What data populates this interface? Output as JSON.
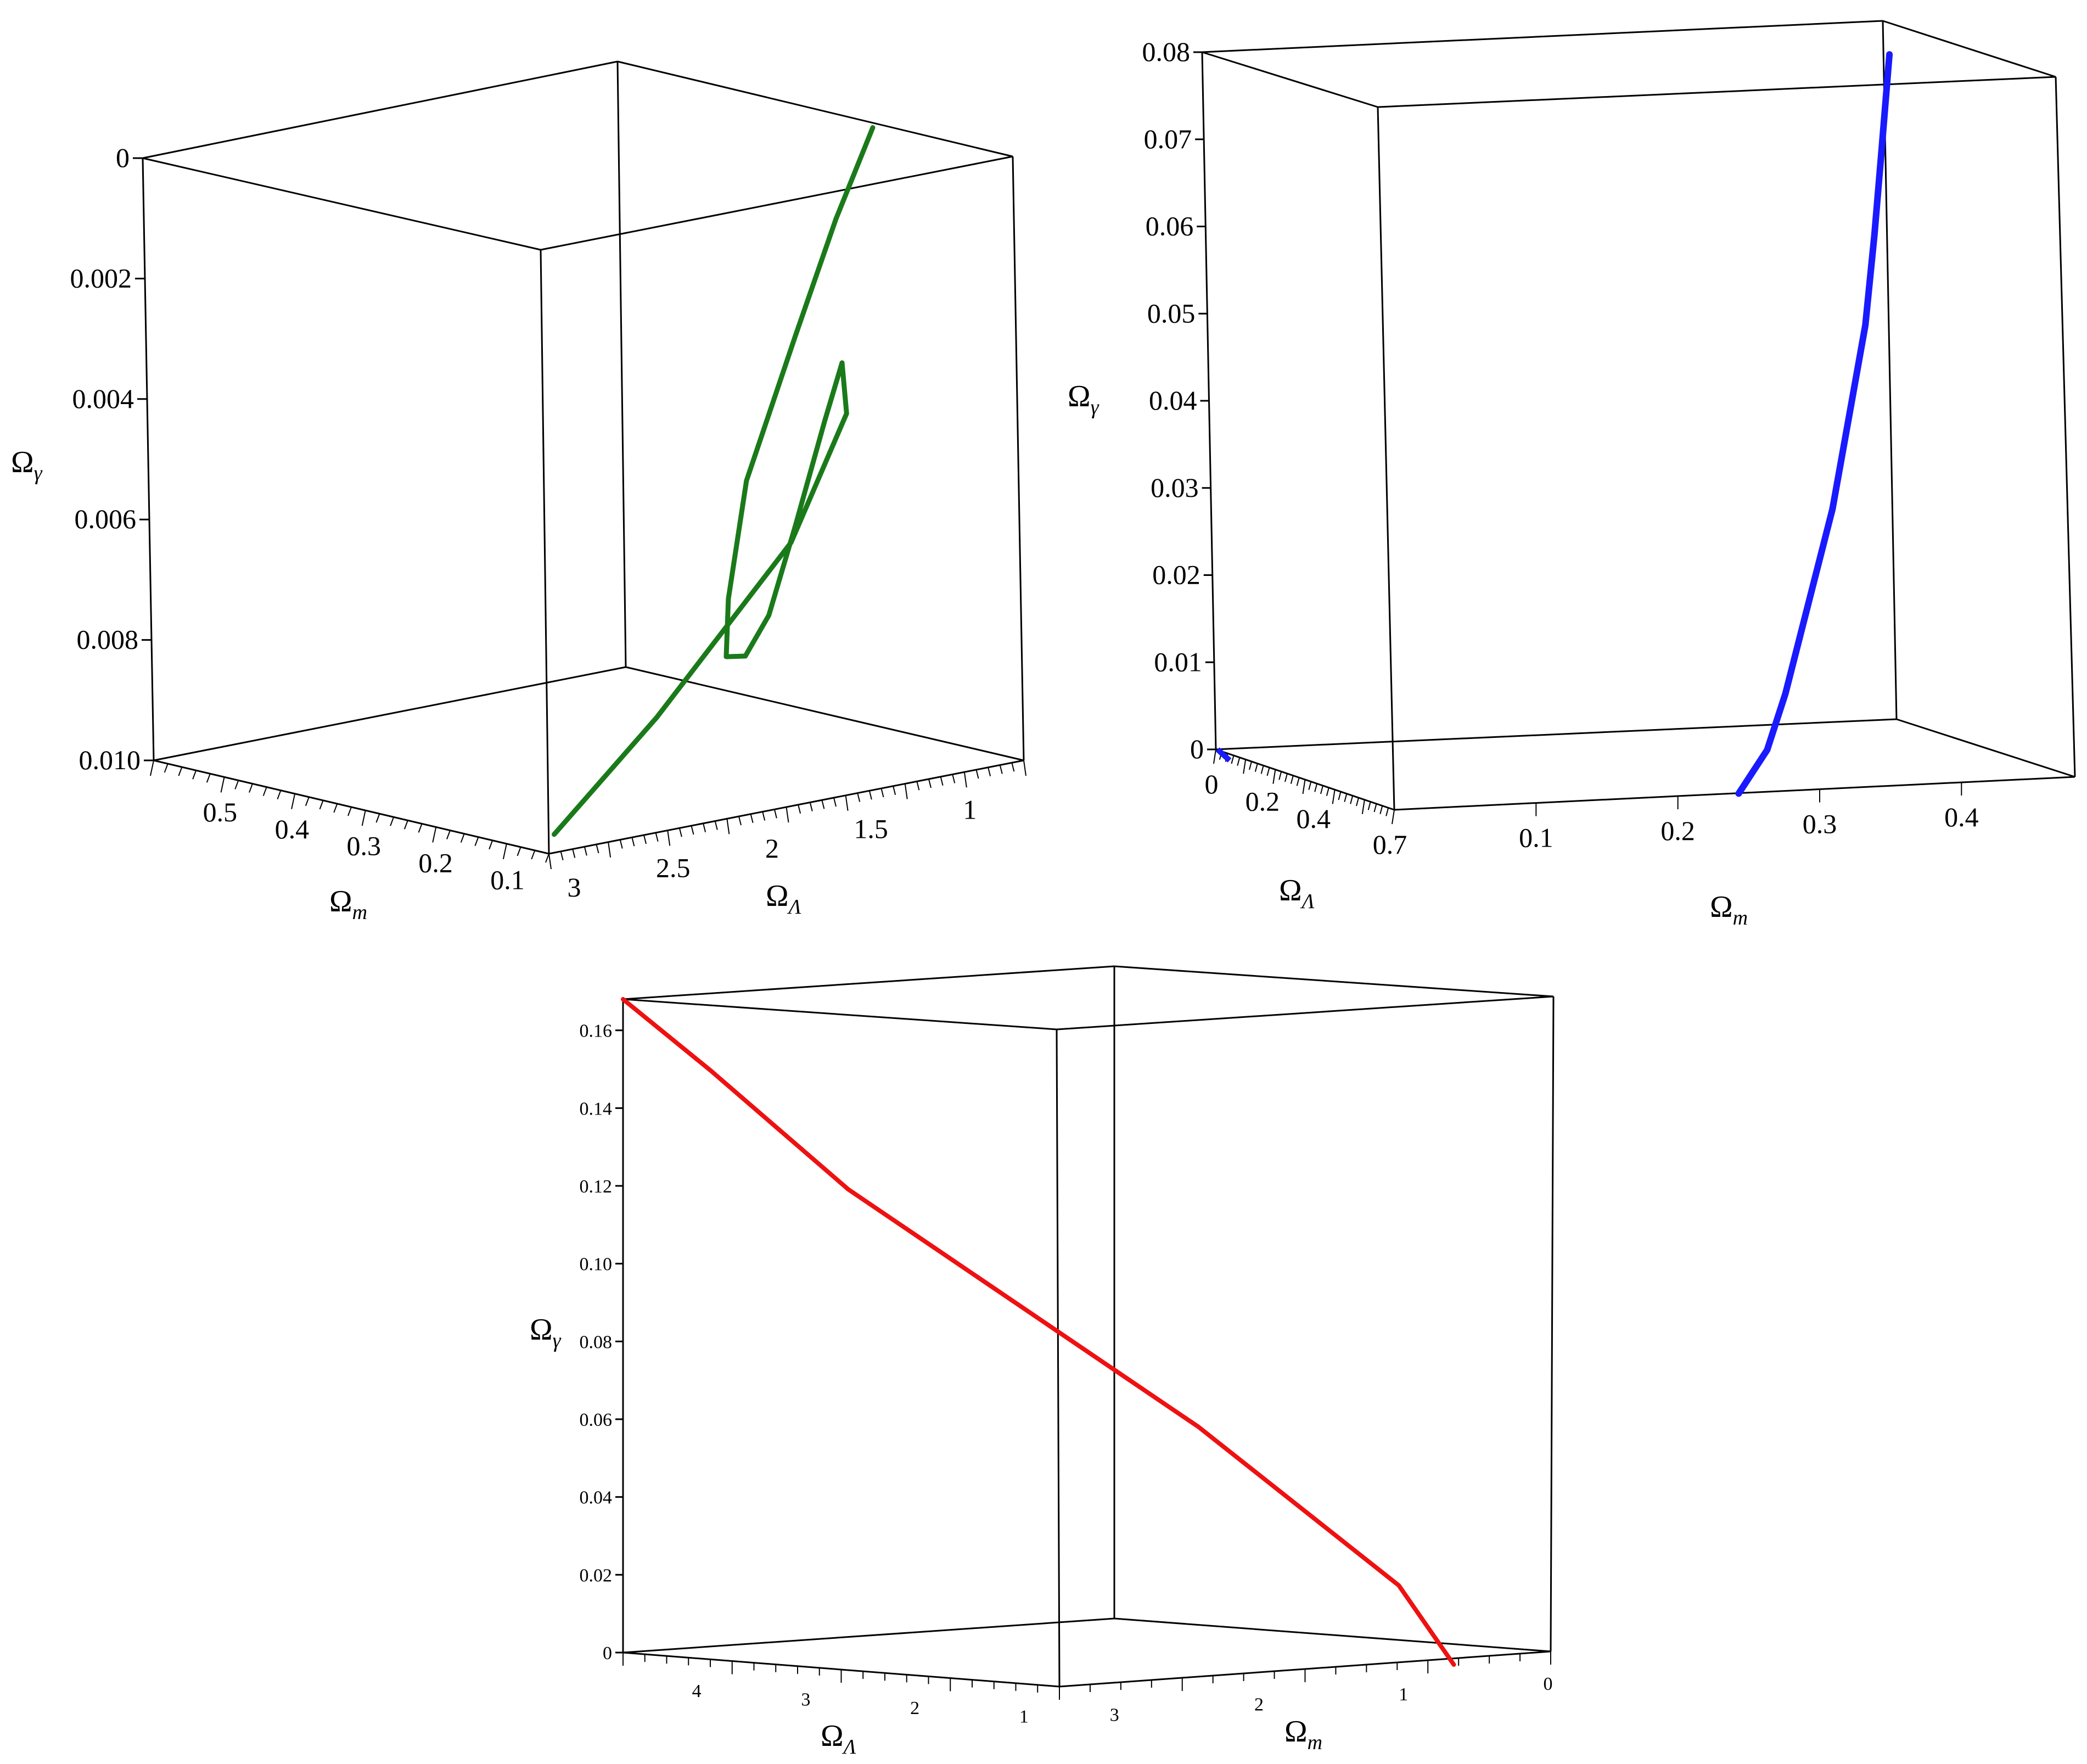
{
  "chart_data": [
    {
      "id": "top-left",
      "type": "line",
      "projection": "3d",
      "box": true,
      "color": "#1a7a1a",
      "axes": {
        "gamma": {
          "title_main": "Ω",
          "title_sub": "γ",
          "ticks": [
            "0",
            "0.002",
            "0.004",
            "0.006",
            "0.008",
            "0.010"
          ],
          "range": [
            0,
            0.01
          ],
          "inverted": true
        },
        "m": {
          "title_main": "Ω",
          "title_sub": "m",
          "ticks": [
            "0.5",
            "0.4",
            "0.3",
            "0.2",
            "0.1"
          ],
          "range": [
            0.05,
            0.6
          ]
        },
        "lambda": {
          "title_main": "Ω",
          "title_sub": "Λ",
          "ticks": [
            "3",
            "2.5",
            "2",
            "1.5",
            "1"
          ],
          "range": [
            0.7,
            3.1
          ]
        }
      },
      "series": [
        {
          "points": [
            {
              "m": 0.12,
              "lambda": 1.15,
              "gamma": -0.0006
            },
            {
              "m": 0.16,
              "lambda": 1.2,
              "gamma": 0.001
            },
            {
              "m": 0.2,
              "lambda": 1.27,
              "gamma": 0.003
            },
            {
              "m": 0.25,
              "lambda": 1.35,
              "gamma": 0.0055
            },
            {
              "m": 0.27,
              "lambda": 1.38,
              "gamma": 0.0075
            },
            {
              "m": 0.28,
              "lambda": 1.36,
              "gamma": 0.0085
            },
            {
              "m": 0.27,
              "lambda": 1.3,
              "gamma": 0.0085
            },
            {
              "m": 0.25,
              "lambda": 1.25,
              "gamma": 0.0078
            },
            {
              "m": 0.23,
              "lambda": 1.18,
              "gamma": 0.0063
            },
            {
              "m": 0.2,
              "lambda": 1.13,
              "gamma": 0.0045
            },
            {
              "m": 0.18,
              "lambda": 1.11,
              "gamma": 0.0035
            },
            {
              "m": 0.15,
              "lambda": 1.2,
              "gamma": 0.0042
            },
            {
              "m": 0.12,
              "lambda": 1.6,
              "gamma": 0.006
            },
            {
              "m": 0.09,
              "lambda": 2.4,
              "gamma": 0.0083
            },
            {
              "m": 0.07,
              "lambda": 3.0,
              "gamma": 0.0098
            }
          ]
        }
      ]
    },
    {
      "id": "top-right",
      "type": "line",
      "projection": "3d",
      "box": true,
      "color": "#1a1aff",
      "axes": {
        "gamma": {
          "title_main": "Ω",
          "title_sub": "γ",
          "ticks": [
            "0",
            "0.01",
            "0.02",
            "0.03",
            "0.04",
            "0.05",
            "0.06",
            "0.07",
            "0.08"
          ],
          "range": [
            0,
            0.08
          ]
        },
        "lambda": {
          "title_main": "Ω",
          "title_sub": "Λ",
          "ticks": [
            "0",
            "0.2",
            "0.4",
            "0.7"
          ],
          "range": [
            0,
            0.7
          ]
        },
        "m": {
          "title_main": "Ω",
          "title_sub": "m",
          "ticks": [
            "0.1",
            "0.2",
            "0.3",
            "0.4"
          ],
          "range": [
            0,
            0.48
          ]
        }
      },
      "series": [
        {
          "points": [
            {
              "m": 0.25,
              "lambda": 0.66,
              "gamma": -0.0005
            },
            {
              "m": 0.276,
              "lambda": 0.63,
              "gamma": 0.004
            },
            {
              "m": 0.295,
              "lambda": 0.6,
              "gamma": 0.01
            },
            {
              "m": 0.32,
              "lambda": 0.56,
              "gamma": 0.02
            },
            {
              "m": 0.345,
              "lambda": 0.52,
              "gamma": 0.03
            },
            {
              "m": 0.365,
              "lambda": 0.48,
              "gamma": 0.04
            },
            {
              "m": 0.385,
              "lambda": 0.44,
              "gamma": 0.05
            },
            {
              "m": 0.398,
              "lambda": 0.41,
              "gamma": 0.06
            },
            {
              "m": 0.41,
              "lambda": 0.38,
              "gamma": 0.07
            },
            {
              "m": 0.42,
              "lambda": 0.36,
              "gamma": 0.08
            }
          ]
        }
      ]
    },
    {
      "id": "bottom",
      "type": "line",
      "projection": "3d",
      "box": true,
      "color": "#ee1111",
      "axes": {
        "gamma": {
          "title_main": "Ω",
          "title_sub": "γ",
          "ticks": [
            "0",
            "0.02",
            "0.04",
            "0.06",
            "0.08",
            "0.10",
            "0.12",
            "0.14",
            "0.16"
          ],
          "range": [
            0,
            0.168
          ]
        },
        "lambda": {
          "title_main": "Ω",
          "title_sub": "Λ",
          "ticks": [
            "4",
            "3",
            "2",
            "1"
          ],
          "range": [
            0.7,
            4.7
          ]
        },
        "m": {
          "title_main": "Ω",
          "title_sub": "m",
          "ticks": [
            "3",
            "2",
            "1",
            "0"
          ],
          "range": [
            0,
            3.4
          ]
        }
      },
      "series": [
        {
          "points": [
            {
              "m": 0.0,
              "lambda": 4.7,
              "gamma": 0.168
            },
            {
              "m": 0.35,
              "lambda": 4.2,
              "gamma": 0.15
            },
            {
              "m": 0.9,
              "lambda": 3.4,
              "gamma": 0.12
            },
            {
              "m": 1.6,
              "lambda": 2.6,
              "gamma": 0.09
            },
            {
              "m": 2.3,
              "lambda": 1.8,
              "gamma": 0.06
            },
            {
              "m": 2.9,
              "lambda": 1.15,
              "gamma": 0.03
            },
            {
              "m": 3.1,
              "lambda": 0.95,
              "gamma": 0.02
            },
            {
              "m": 3.32,
              "lambda": 0.7,
              "gamma": 0.0
            }
          ]
        }
      ]
    }
  ]
}
